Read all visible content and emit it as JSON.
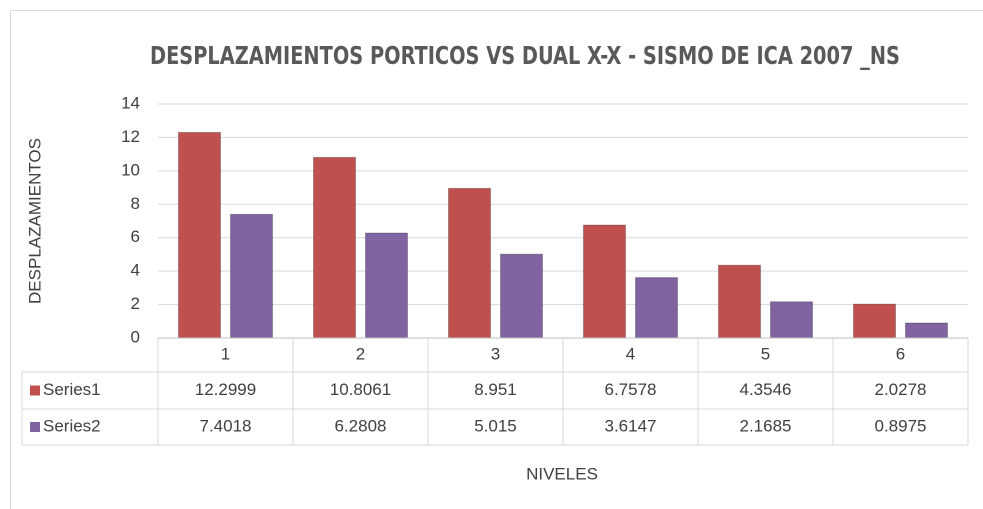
{
  "chart_data": {
    "type": "bar",
    "title": "DESPLAZAMIENTOS  PORTICOS VS DUAL X-X - SISMO DE ICA 2007 _NS",
    "x_label": "NIVELES",
    "y_label": "DESPLAZAMIENTOS",
    "categories": [
      "1",
      "2",
      "3",
      "4",
      "5",
      "6"
    ],
    "series": [
      {
        "name": "Series1",
        "color": "#c0504d",
        "values": [
          12.2999,
          10.8061,
          8.951,
          6.7578,
          4.3546,
          2.0278
        ]
      },
      {
        "name": "Series2",
        "color": "#8064a2",
        "values": [
          7.4018,
          6.2808,
          5.015,
          3.6147,
          2.1685,
          0.8975
        ]
      }
    ],
    "ylim": [
      0,
      14
    ],
    "yticks": [
      0,
      2,
      4,
      6,
      8,
      10,
      12,
      14
    ],
    "grid": true
  }
}
